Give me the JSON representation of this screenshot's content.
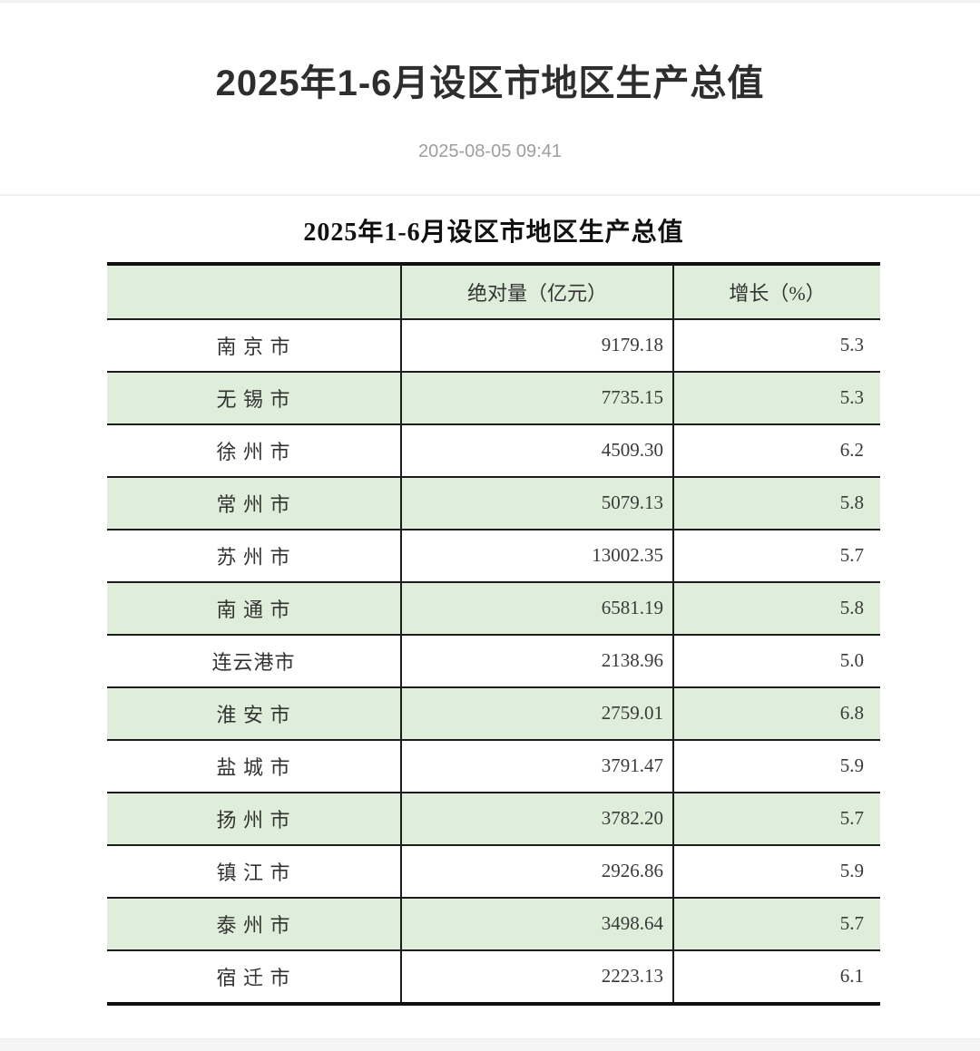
{
  "header": {
    "title": "2025年1-6月设区市地区生产总值",
    "timestamp": "2025-08-05 09:41"
  },
  "table": {
    "caption": "2025年1-6月设区市地区生产总值",
    "columns": [
      "",
      "绝对量（亿元）",
      "增长（%）"
    ],
    "rows": [
      {
        "city": "南 京 市",
        "value": "9179.18",
        "growth": "5.3"
      },
      {
        "city": "无 锡 市",
        "value": "7735.15",
        "growth": "5.3"
      },
      {
        "city": "徐 州 市",
        "value": "4509.30",
        "growth": "6.2"
      },
      {
        "city": "常 州 市",
        "value": "5079.13",
        "growth": "5.8"
      },
      {
        "city": "苏 州 市",
        "value": "13002.35",
        "growth": "5.7"
      },
      {
        "city": "南 通 市",
        "value": "6581.19",
        "growth": "5.8"
      },
      {
        "city": "连云港市",
        "value": "2138.96",
        "growth": "5.0"
      },
      {
        "city": "淮 安 市",
        "value": "2759.01",
        "growth": "6.8"
      },
      {
        "city": "盐 城 市",
        "value": "3791.47",
        "growth": "5.9"
      },
      {
        "city": "扬 州 市",
        "value": "3782.20",
        "growth": "5.7"
      },
      {
        "city": "镇 江 市",
        "value": "2926.86",
        "growth": "5.9"
      },
      {
        "city": "泰 州 市",
        "value": "3498.64",
        "growth": "5.7"
      },
      {
        "city": "宿 迁 市",
        "value": "2223.13",
        "growth": "6.1"
      }
    ]
  },
  "colors": {
    "row_highlight": "#dfeeda",
    "table_border": "#1c1c1c",
    "heading_text": "#2e2e2e",
    "body_text": "#333333",
    "timestamp_text": "#9e9e9e",
    "divider": "#f0f0f0",
    "footer_band": "#f5f5f5"
  }
}
